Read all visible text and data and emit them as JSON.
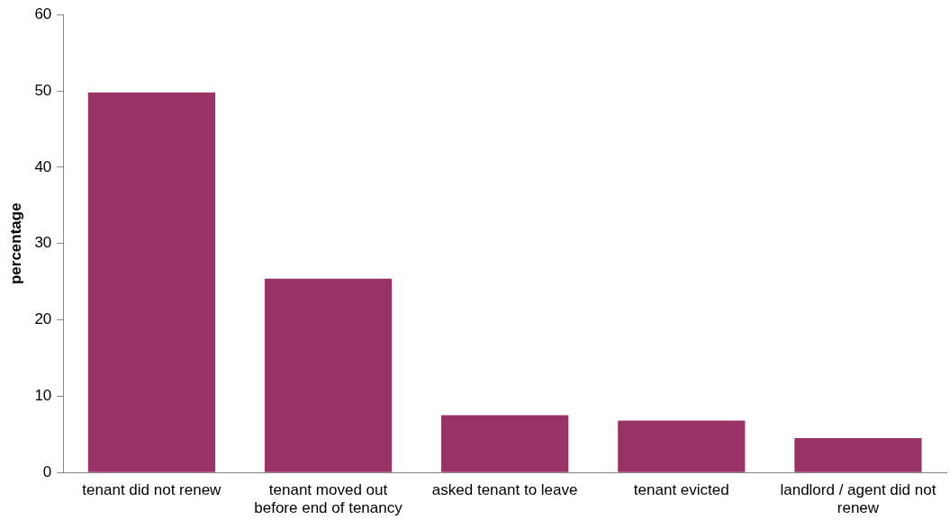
{
  "chart_data": {
    "type": "bar",
    "ylabel": "percentage",
    "categories": [
      "tenant did not renew",
      "tenant moved out before end of tenancy",
      "asked tenant to leave",
      "tenant evicted",
      "landlord / agent did not renew"
    ],
    "values": [
      49.8,
      25.4,
      7.5,
      6.8,
      4.5
    ],
    "color": "#993366",
    "ylim": [
      0,
      60
    ],
    "yticks": [
      0,
      10,
      20,
      30,
      40,
      50,
      60
    ],
    "grid": false,
    "legend": false
  }
}
